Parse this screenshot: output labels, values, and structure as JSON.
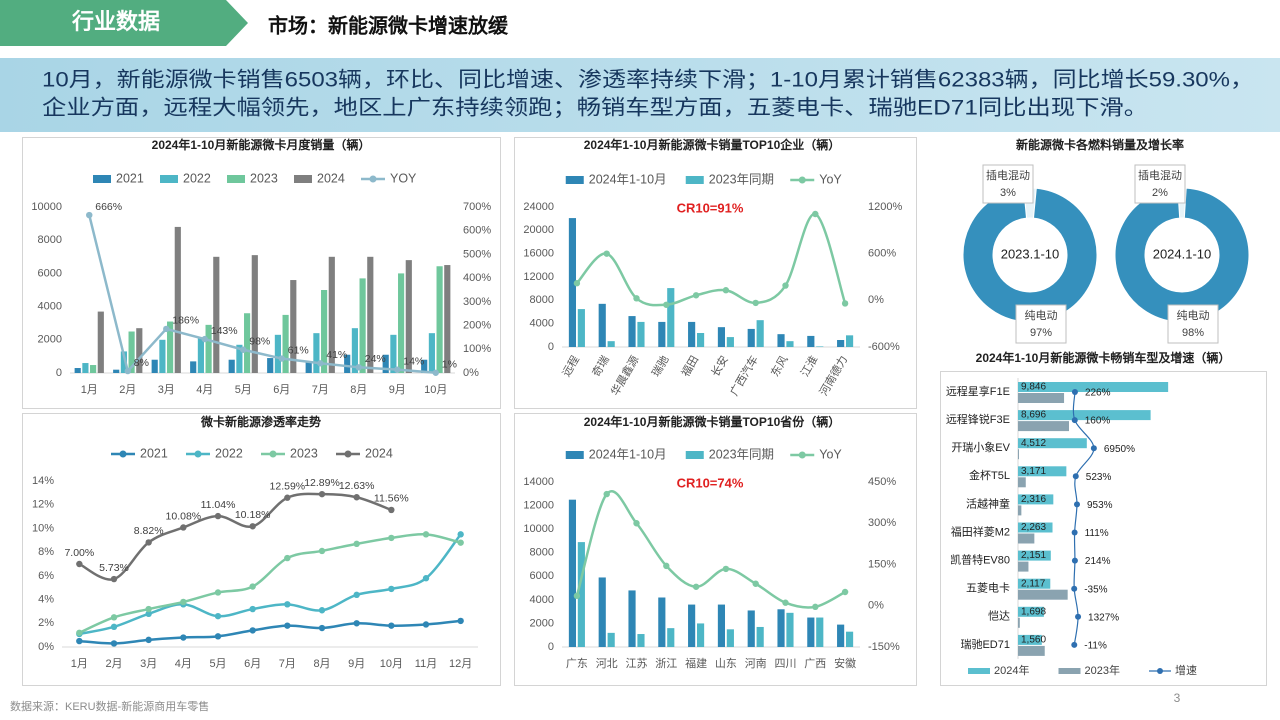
{
  "header": {
    "tag": "行业数据",
    "title": "市场：新能源微卡增速放缓",
    "summary": [
      "10月，新能源微卡销售6503辆，环比、同比增速、渗透率持续下滑；1-10月累计销售62383辆，同比增长59.30%，",
      "企业方面，远程大幅领先，地区上广东持续领跑；畅销车型方面，五菱电卡、瑞驰ED71同比出现下滑。"
    ]
  },
  "footer": {
    "source": "数据来源：KERU数据-新能源商用车零售",
    "page": "3"
  },
  "chart_data": [
    {
      "type": "bar",
      "title": "2024年1-10月新能源微卡月度销量（辆）",
      "categories": [
        "1月",
        "2月",
        "3月",
        "4月",
        "5月",
        "6月",
        "7月",
        "8月",
        "9月",
        "10月"
      ],
      "series": [
        {
          "name": "2021",
          "color": "#2e86b5",
          "values": [
            300,
            200,
            800,
            700,
            800,
            900,
            700,
            1100,
            1100,
            800
          ]
        },
        {
          "name": "2022",
          "color": "#4db6c6",
          "values": [
            600,
            1300,
            2000,
            2100,
            1700,
            2300,
            2400,
            2700,
            2300,
            2400
          ]
        },
        {
          "name": "2023",
          "color": "#6fc79c",
          "values": [
            480,
            2500,
            3100,
            2900,
            3600,
            3500,
            5000,
            5700,
            6000,
            6430
          ]
        },
        {
          "name": "2024",
          "color": "#7f7f7f",
          "values": [
            3700,
            2700,
            8800,
            7000,
            7100,
            5600,
            7000,
            7000,
            6800,
            6503
          ]
        },
        {
          "name": "YOY",
          "color": "#8db9cb",
          "type": "line",
          "axis": "y2",
          "values": [
            666,
            8,
            186,
            143,
            98,
            61,
            41,
            24,
            14,
            1
          ],
          "value_labels": [
            "666%",
            "8%",
            "186%",
            "143%",
            "98%",
            "61%",
            "41%",
            "24%",
            "14%",
            "1%"
          ]
        }
      ],
      "ylim": [
        0,
        10000
      ],
      "yticks": [
        0,
        2000,
        4000,
        6000,
        8000,
        10000
      ],
      "y2lim": [
        0,
        700
      ],
      "y2ticks": [
        {
          "value": 0,
          "label": "0%"
        },
        {
          "value": 100,
          "label": "100%"
        },
        {
          "value": 200,
          "label": "200%"
        },
        {
          "value": 300,
          "label": "300%"
        },
        {
          "value": 400,
          "label": "400%"
        },
        {
          "value": 500,
          "label": "500%"
        },
        {
          "value": 600,
          "label": "600%"
        },
        {
          "value": 700,
          "label": "700%"
        }
      ]
    },
    {
      "type": "bar",
      "title": "2024年1-10月新能源微卡销量TOP10企业（辆）",
      "annotation": "CR10=91%",
      "categories": [
        "远程",
        "奇瑞",
        "华晨鑫源",
        "瑞驰",
        "福田",
        "长安",
        "广西汽车",
        "东风",
        "江淮",
        "河南德力"
      ],
      "series": [
        {
          "name": "2024年1-10月",
          "color": "#2e86b5",
          "values": [
            22100,
            7400,
            5300,
            4300,
            4300,
            3400,
            3100,
            2200,
            1900,
            1200
          ]
        },
        {
          "name": "2023年同期",
          "color": "#4db6c6",
          "values": [
            6500,
            1000,
            4300,
            10100,
            2400,
            1700,
            4600,
            1000,
            100,
            2000
          ]
        },
        {
          "name": "YoY",
          "color": "#7dc9a3",
          "type": "line",
          "axis": "y2",
          "smooth": true,
          "values": [
            220,
            600,
            26,
            -57,
            65,
            130,
            -33,
            190,
            1110,
            -40
          ]
        }
      ],
      "ylim": [
        0,
        24000
      ],
      "yticks": [
        0,
        4000,
        8000,
        12000,
        16000,
        20000,
        24000
      ],
      "y2lim": [
        -600,
        1200
      ],
      "y2ticks": [
        {
          "value": -600,
          "label": "-600%"
        },
        {
          "value": 0,
          "label": "0%"
        },
        {
          "value": 600,
          "label": "600%"
        },
        {
          "value": 1200,
          "label": "1200%"
        }
      ]
    },
    {
      "type": "donut",
      "title": "新能源微卡各燃料销量及增长率",
      "categories": [
        "插电混动",
        "纯电动"
      ],
      "colors": [
        "#e6f3f8",
        "#3590bd"
      ],
      "pies": [
        {
          "label": "2023.1-10",
          "values": [
            3,
            97
          ],
          "value_labels": [
            "3%",
            "97%"
          ]
        },
        {
          "label": "2024.1-10",
          "values": [
            2,
            98
          ],
          "value_labels": [
            "2%",
            "98%"
          ]
        }
      ]
    },
    {
      "type": "line",
      "title": "微卡新能源渗透率走势",
      "categories": [
        "1月",
        "2月",
        "3月",
        "4月",
        "5月",
        "6月",
        "7月",
        "8月",
        "9月",
        "10月",
        "11月",
        "12月"
      ],
      "series": [
        {
          "name": "2021",
          "color": "#2e86b5",
          "smooth": true,
          "values": [
            0.5,
            0.3,
            0.6,
            0.8,
            0.9,
            1.4,
            1.8,
            1.6,
            2.0,
            1.8,
            1.9,
            2.2
          ]
        },
        {
          "name": "2022",
          "color": "#4db6c6",
          "smooth": true,
          "values": [
            1.1,
            1.7,
            2.8,
            3.6,
            2.6,
            3.2,
            3.6,
            3.1,
            4.4,
            4.9,
            5.8,
            9.5
          ]
        },
        {
          "name": "2023",
          "color": "#7dc9a3",
          "smooth": true,
          "values": [
            1.2,
            2.5,
            3.2,
            3.8,
            4.6,
            5.1,
            7.5,
            8.1,
            8.7,
            9.2,
            9.5,
            8.8
          ]
        },
        {
          "name": "2024",
          "color": "#707070",
          "smooth": true,
          "values": [
            7.0,
            5.73,
            8.82,
            10.08,
            11.04,
            10.18,
            12.59,
            12.89,
            12.63,
            11.56,
            null,
            null
          ],
          "value_labels": [
            "7.00%",
            "5.73%",
            "8.82%",
            "10.08%",
            "11.04%",
            "10.18%",
            "12.59%",
            "12.89%",
            "12.63%",
            "11.56%",
            null,
            null
          ]
        }
      ],
      "ylim": [
        0,
        14
      ],
      "yticks": [
        {
          "value": 0,
          "label": "0%"
        },
        {
          "value": 2,
          "label": "2%"
        },
        {
          "value": 4,
          "label": "4%"
        },
        {
          "value": 6,
          "label": "6%"
        },
        {
          "value": 8,
          "label": "8%"
        },
        {
          "value": 10,
          "label": "10%"
        },
        {
          "value": 12,
          "label": "12%"
        },
        {
          "value": 14,
          "label": "14%"
        }
      ]
    },
    {
      "type": "bar",
      "title": "2024年1-10月新能源微卡销量TOP10省份（辆）",
      "annotation": "CR10=74%",
      "categories": [
        "广东",
        "河北",
        "江苏",
        "浙江",
        "福建",
        "山东",
        "河南",
        "四川",
        "广西",
        "安徽"
      ],
      "series": [
        {
          "name": "2024年1-10月",
          "color": "#2e86b5",
          "values": [
            12500,
            5900,
            4800,
            4200,
            3600,
            3600,
            3100,
            3200,
            2500,
            1900
          ]
        },
        {
          "name": "2023年同期",
          "color": "#4db6c6",
          "values": [
            8900,
            1200,
            1100,
            1600,
            2000,
            1500,
            1700,
            2900,
            2500,
            1300
          ]
        },
        {
          "name": "YoY",
          "color": "#7dc9a3",
          "type": "line",
          "axis": "y2",
          "smooth": true,
          "values": [
            36,
            406,
            300,
            145,
            69,
            134,
            80,
            11,
            -4,
            50
          ]
        }
      ],
      "ylim": [
        0,
        14000
      ],
      "yticks": [
        0,
        2000,
        4000,
        6000,
        8000,
        10000,
        12000,
        14000
      ],
      "y2lim": [
        -150,
        450
      ],
      "y2ticks": [
        {
          "value": -150,
          "label": "-150%"
        },
        {
          "value": 0,
          "label": "0%"
        },
        {
          "value": 150,
          "label": "150%"
        },
        {
          "value": 300,
          "label": "300%"
        },
        {
          "value": 450,
          "label": "450%"
        }
      ]
    },
    {
      "type": "barh",
      "title": "2024年1-10月新能源微卡畅销车型及增速（辆）",
      "categories": [
        "远程星享F1E",
        "远程锋锐F3E",
        "开瑞小象EV",
        "金杯T5L",
        "活越神童",
        "福田祥菱M2",
        "凯普特EV80",
        "五菱电卡",
        "恺达",
        "瑞驰ED71"
      ],
      "series": [
        {
          "name": "2024年",
          "color": "#5bbfcf",
          "values": [
            9846,
            8696,
            4512,
            3171,
            2316,
            2263,
            2151,
            2117,
            1698,
            1560
          ],
          "value_labels": [
            "9,846",
            "8,696",
            "4,512",
            "3,171",
            "2,316",
            "2,263",
            "2,151",
            "2,117",
            "1,698",
            "1,560"
          ]
        },
        {
          "name": "2023年",
          "color": "#8aa3b0",
          "values": [
            3020,
            3345,
            64,
            509,
            220,
            1072,
            685,
            3257,
            119,
            1753
          ]
        },
        {
          "name": "增速",
          "color": "#2e6fb0",
          "type": "line",
          "axis": "x2",
          "values": [
            226,
            160,
            6950,
            523,
            953,
            111,
            214,
            -35,
            1327,
            -11
          ],
          "value_labels": [
            "226%",
            "160%",
            "6950%",
            "523%",
            "953%",
            "111%",
            "214%",
            "-35%",
            "1327%",
            "-11%"
          ]
        }
      ],
      "xlim": [
        0,
        12000
      ],
      "x2lim": [
        -20000,
        45000
      ]
    }
  ]
}
